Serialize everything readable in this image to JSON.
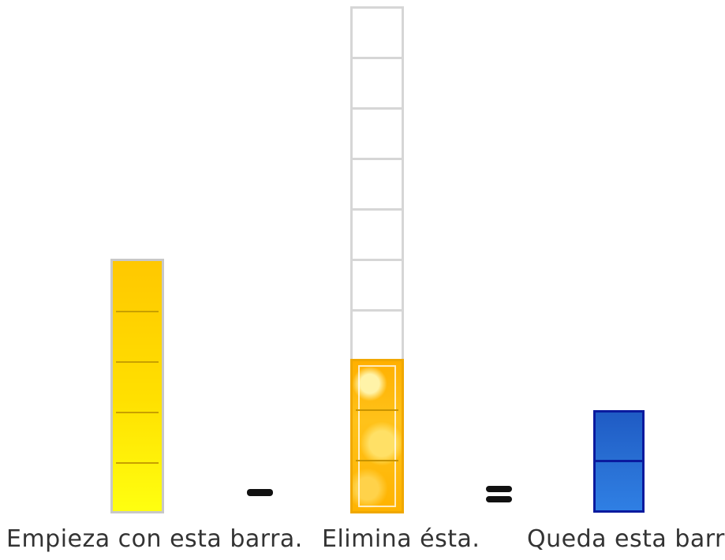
{
  "start_bar": {
    "units": 5,
    "color": "#ffd700"
  },
  "remove_bar": {
    "total_units": 10,
    "filled_units": 3,
    "color": "#ffb800"
  },
  "result_bar": {
    "units": 2,
    "color": "#2a6fd4"
  },
  "operators": {
    "minus": "−",
    "equals": "="
  },
  "captions": {
    "start": "Empieza con esta barra.",
    "remove": "Elimina ésta.",
    "result": "Queda esta barra."
  }
}
